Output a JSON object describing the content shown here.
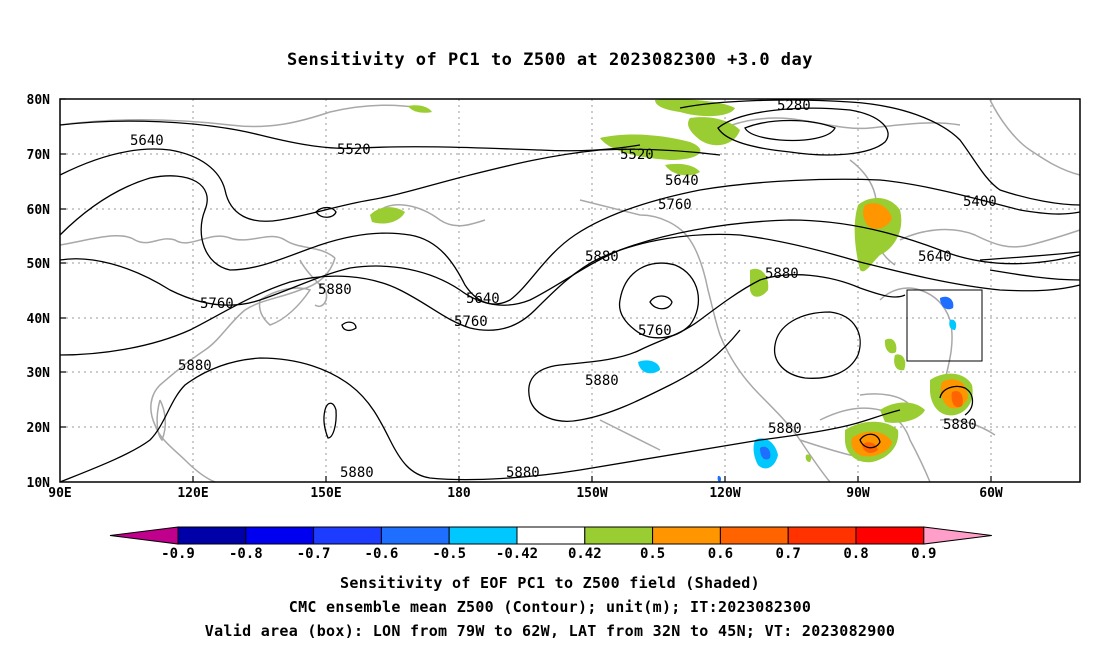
{
  "title": "Sensitivity of PC1 to Z500 at 2023082300 +3.0 day",
  "map": {
    "lat_labels": [
      "80N",
      "70N",
      "60N",
      "50N",
      "40N",
      "30N",
      "20N",
      "10N"
    ],
    "lon_labels": [
      "90E",
      "120E",
      "150E",
      "180",
      "150W",
      "120W",
      "90W",
      "60W"
    ],
    "contour_labels": {
      "c5640_w": "5640",
      "c5520_w": "5520",
      "c5520_e": "5520",
      "c5280": "5280",
      "c5640_e": "5640",
      "c5760_n": "5760",
      "c5400": "5400",
      "c5640_ne": "5640",
      "c5880_a": "5880",
      "c5880_b": "5880",
      "c5760_w": "5760",
      "c5880_w": "5880",
      "c5640_m": "5640",
      "c5760_m": "5760",
      "c5760_low": "5760",
      "c5880_sw": "5880",
      "c5880_s": "5880",
      "c5880_sc": "5880",
      "c5880_ss": "5880",
      "c5880_se": "5880",
      "c5880_x": "5880"
    },
    "valid_box": {
      "lon_min": -79,
      "lon_max": -62,
      "lat_min": 32,
      "lat_max": 45
    }
  },
  "colorbar": {
    "labels": [
      "-0.9",
      "-0.8",
      "-0.7",
      "-0.6",
      "-0.5",
      "-0.42",
      "0.42",
      "0.5",
      "0.6",
      "0.7",
      "0.8",
      "0.9"
    ],
    "colors": [
      "#0000a8",
      "#0000f0",
      "#1e3cff",
      "#1e6eff",
      "#00c8ff",
      "#ffffff",
      "#9acd32",
      "#ff9600",
      "#ff6400",
      "#ff3200",
      "#ff0000"
    ],
    "end_low": "#c0008c",
    "end_high": "#ff9ec8"
  },
  "footer": {
    "line1": "Sensitivity of EOF PC1 to Z500 field (Shaded)",
    "line2": "CMC ensemble mean Z500 (Contour); unit(m); IT:2023082300",
    "line3": "Valid area (box): LON from 79W to 62W, LAT from 32N to 45N; VT: 2023082900"
  }
}
